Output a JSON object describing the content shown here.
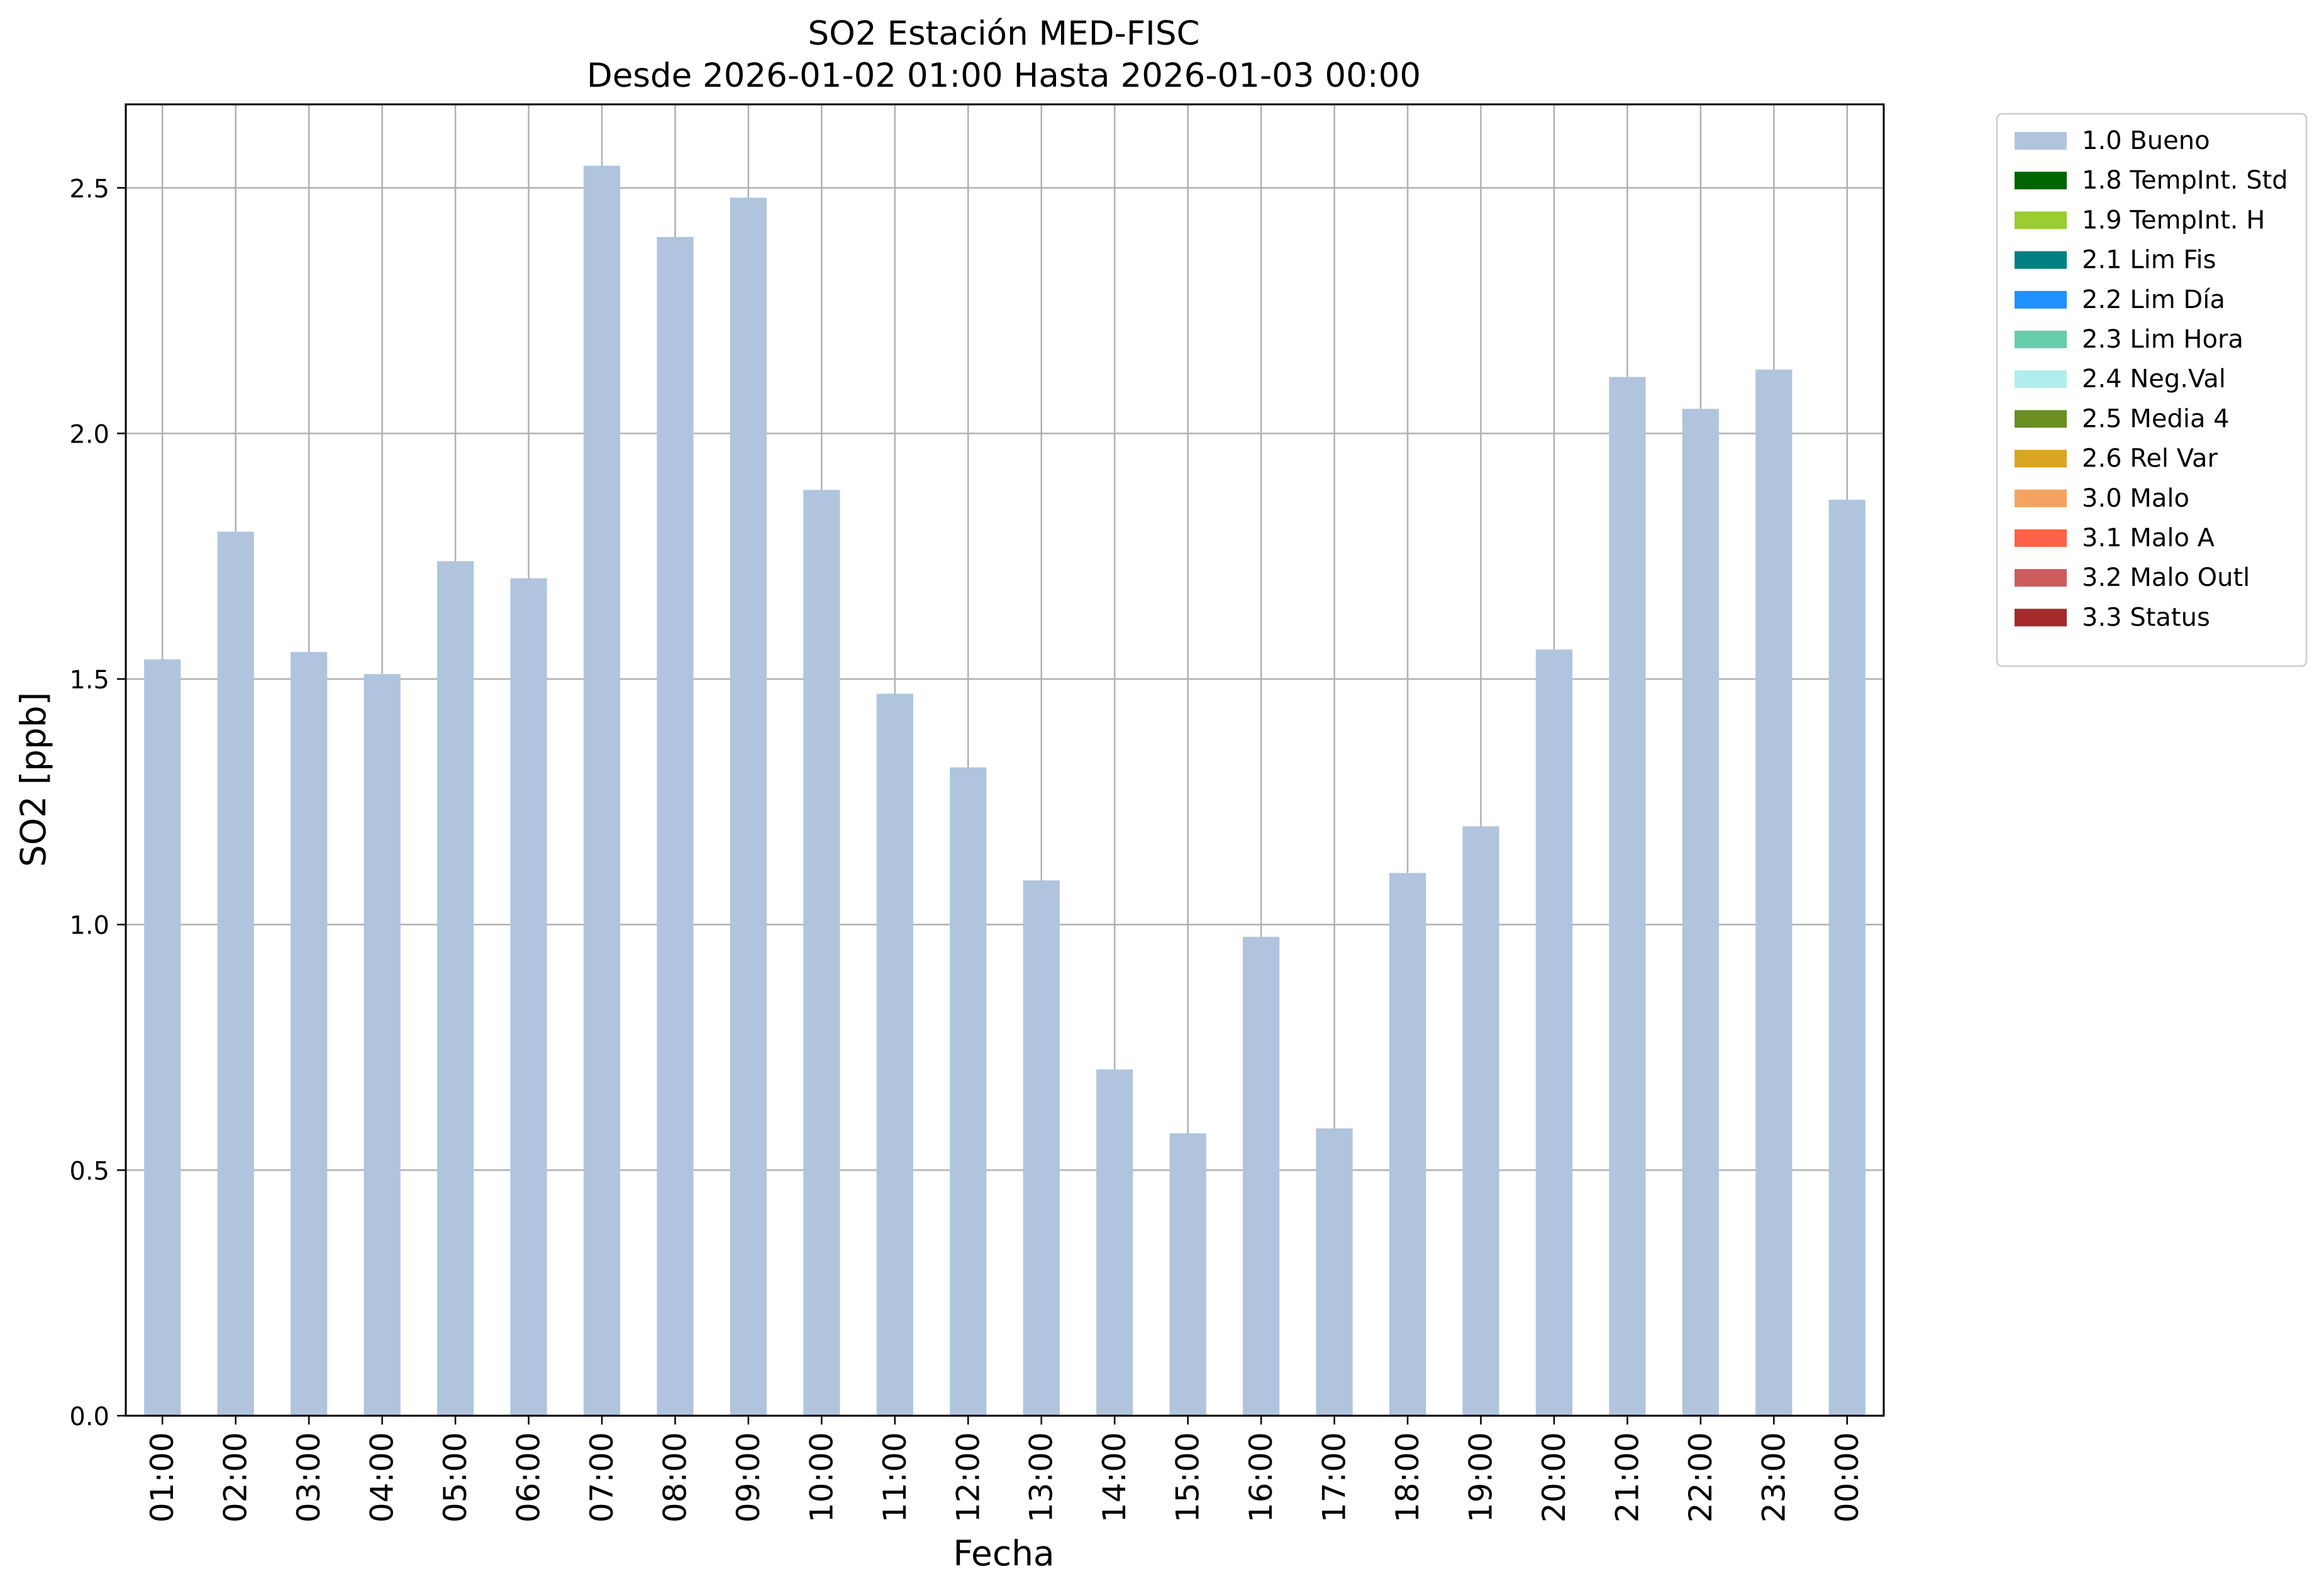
{
  "chart_data": {
    "type": "bar",
    "title": "SO2 Estación MED-FISC",
    "subtitle": "Desde 2026-01-02 01:00 Hasta 2026-01-03 00:00",
    "xlabel": "Fecha",
    "ylabel": "SO2 [ppb]",
    "ylim": [
      0,
      2.67
    ],
    "yticks": [
      "0.0",
      "0.5",
      "1.0",
      "1.5",
      "2.0",
      "2.5"
    ],
    "grid": true,
    "legend_position": "outside-top-right",
    "categories": [
      "01:00",
      "02:00",
      "03:00",
      "04:00",
      "05:00",
      "06:00",
      "07:00",
      "08:00",
      "09:00",
      "10:00",
      "11:00",
      "12:00",
      "13:00",
      "14:00",
      "15:00",
      "16:00",
      "17:00",
      "18:00",
      "19:00",
      "20:00",
      "21:00",
      "22:00",
      "23:00",
      "00:00"
    ],
    "series": [
      {
        "name": "1.0 Bueno",
        "color": "#b0c4de",
        "values": [
          1.54,
          1.8,
          1.555,
          1.51,
          1.74,
          1.705,
          2.545,
          2.4,
          2.48,
          1.885,
          1.47,
          1.32,
          1.09,
          0.705,
          0.575,
          0.975,
          0.585,
          1.105,
          1.2,
          1.56,
          2.115,
          2.05,
          2.13,
          1.865
        ]
      }
    ],
    "legend": [
      {
        "label": "1.0 Bueno",
        "color": "#b0c4de"
      },
      {
        "label": "1.8 TempInt. Std",
        "color": "#006400"
      },
      {
        "label": "1.9 TempInt. H",
        "color": "#9acd32"
      },
      {
        "label": "2.1 Lim Fis",
        "color": "#008080"
      },
      {
        "label": "2.2 Lim Día",
        "color": "#1e90ff"
      },
      {
        "label": "2.3 Lim Hora",
        "color": "#66cdaa"
      },
      {
        "label": "2.4 Neg.Val",
        "color": "#afeeee"
      },
      {
        "label": "2.5 Media 4",
        "color": "#6b8e23"
      },
      {
        "label": "2.6 Rel Var",
        "color": "#daa520"
      },
      {
        "label": "3.0 Malo",
        "color": "#f4a460"
      },
      {
        "label": "3.1 Malo A",
        "color": "#ff6347"
      },
      {
        "label": "3.2 Malo Outl",
        "color": "#cd5c5c"
      },
      {
        "label": "3.3 Status",
        "color": "#a52a2a"
      }
    ]
  }
}
